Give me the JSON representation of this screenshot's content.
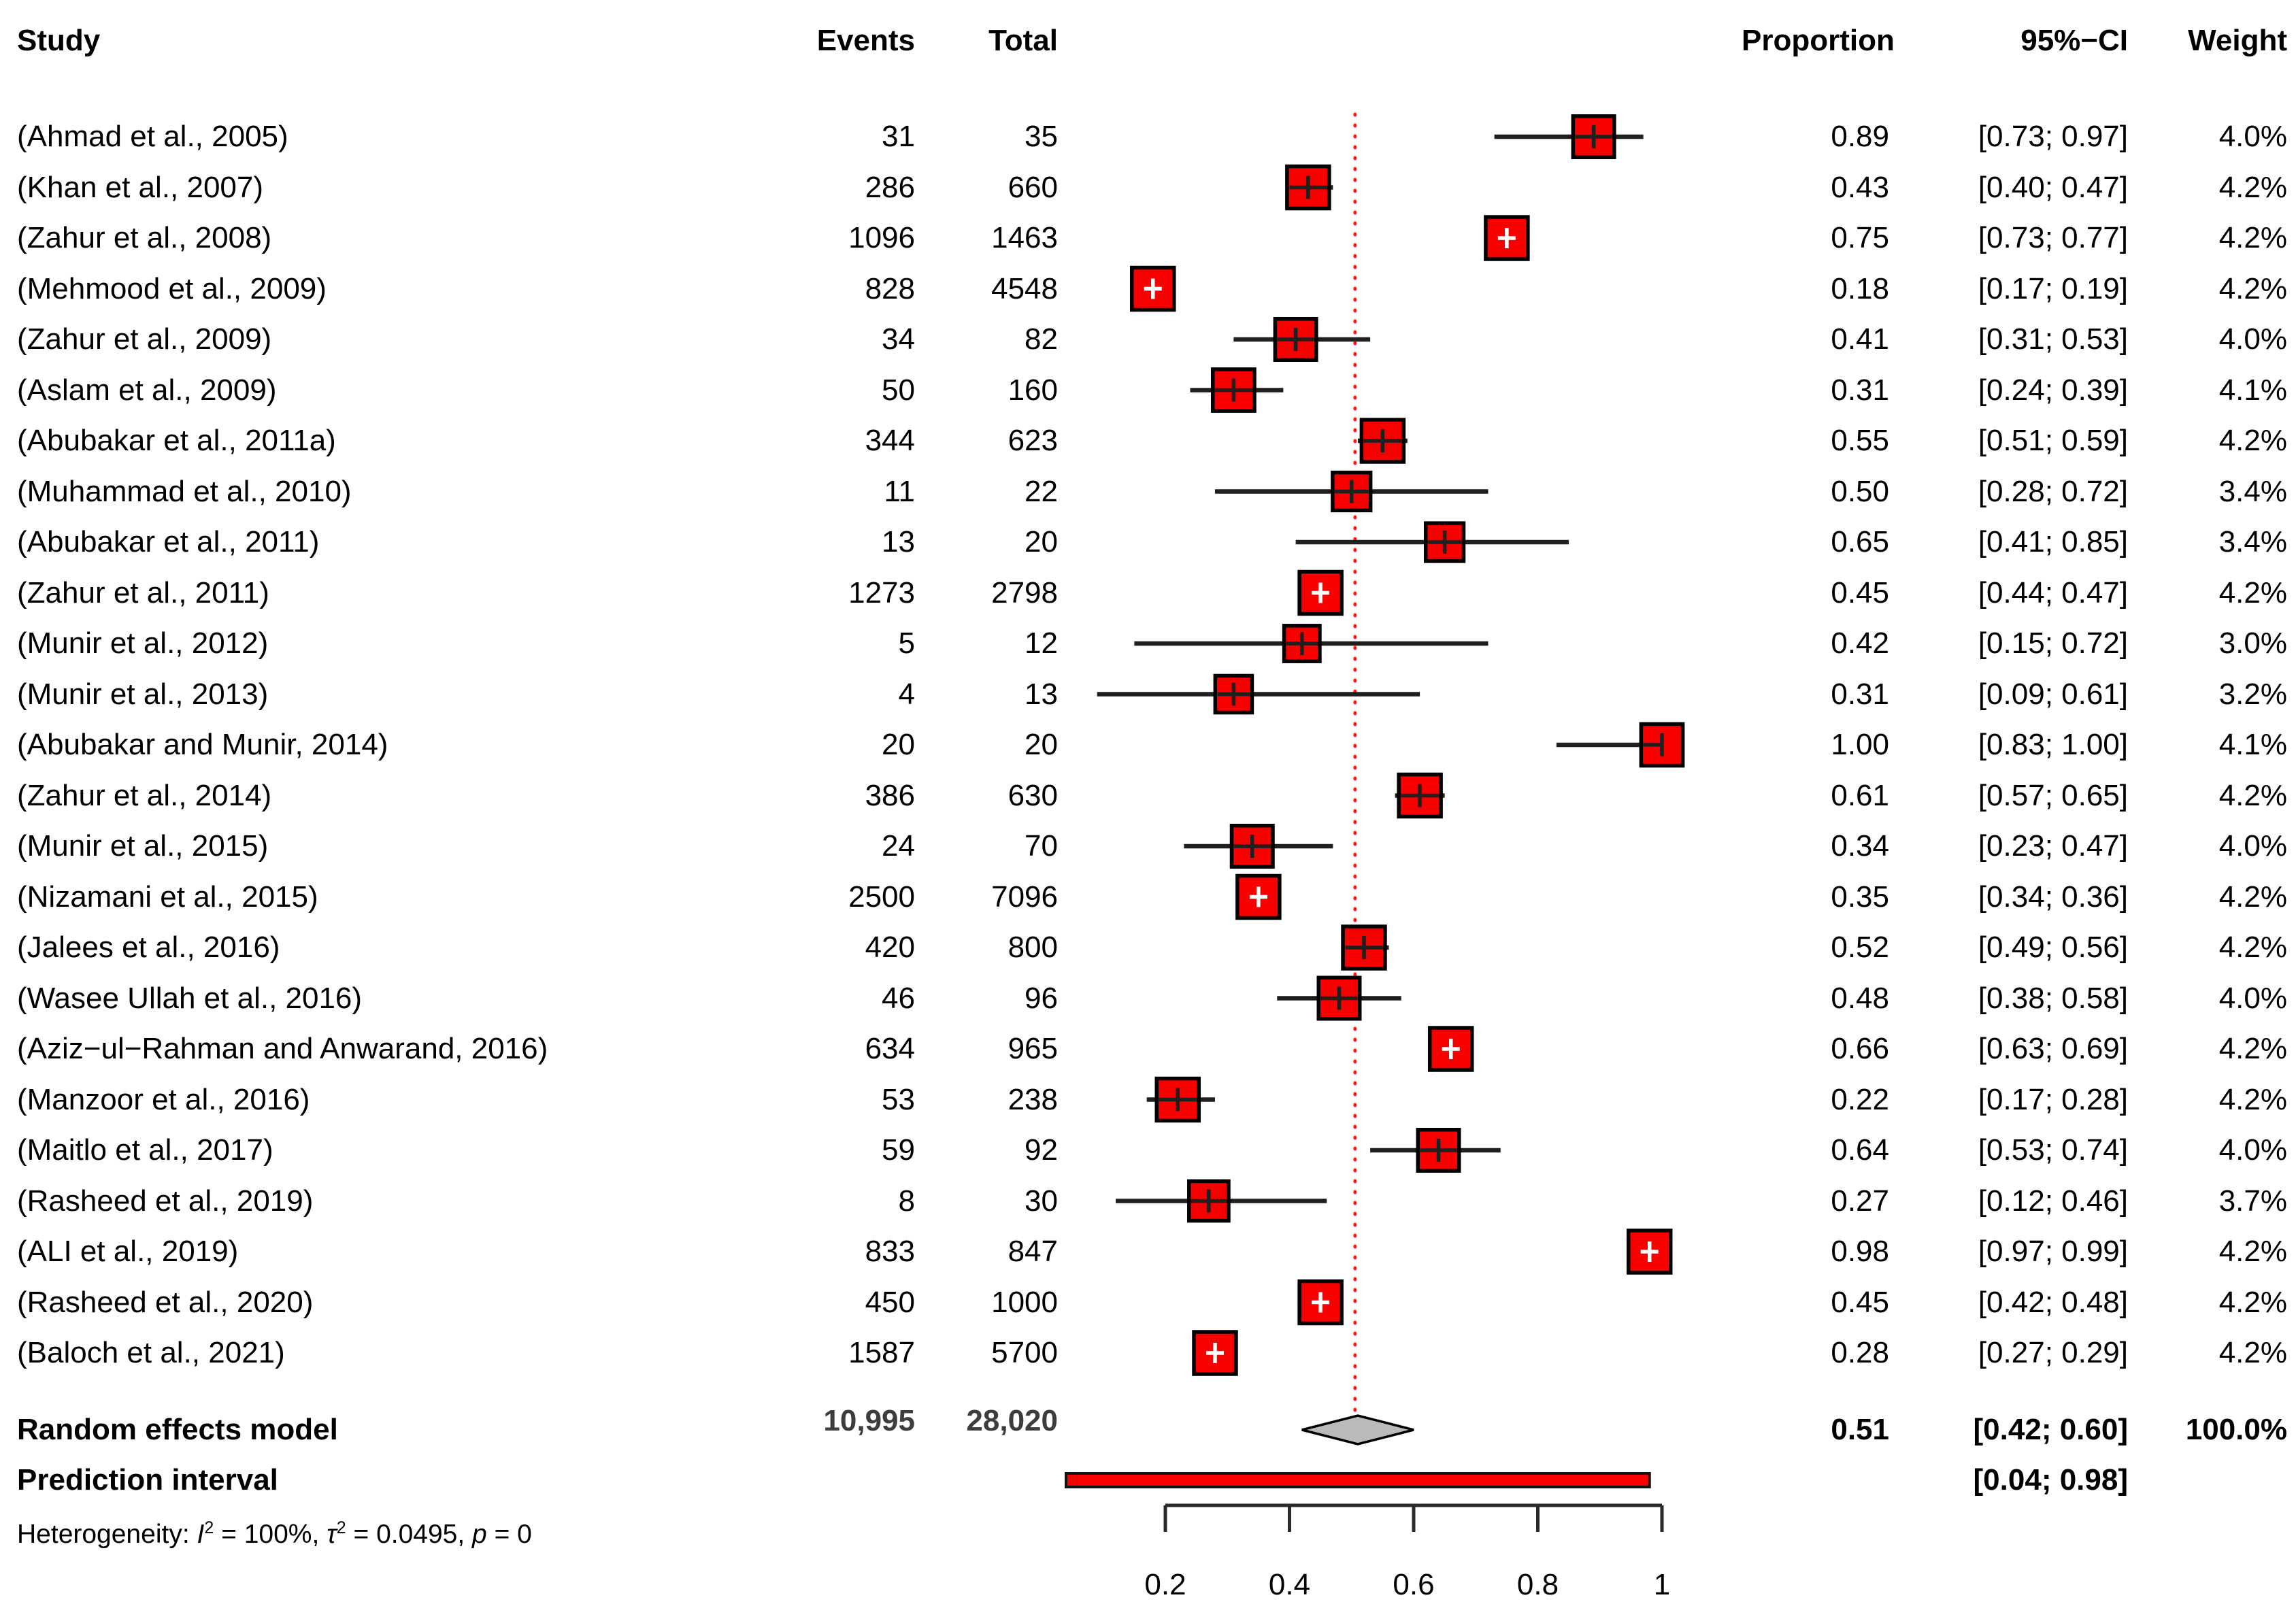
{
  "colors": {
    "square_fill": "#f80000",
    "square_border": "#000000",
    "ci_line": "#1f1f1f",
    "dotted_reference_line": "#ff2020",
    "diamond_fill": "#bababa",
    "diamond_border": "#000000",
    "prediction_bar_fill": "#fa0000",
    "prediction_bar_border": "#141414",
    "axis": "#2a2a2a",
    "totals_text": "#3d3d3d"
  },
  "chart_data": {
    "type": "forest",
    "title": "",
    "xlabel": "",
    "legend": "none",
    "grid": "off",
    "axis": {
      "xlim": [
        0,
        1
      ],
      "ticks": [
        0.2,
        0.4,
        0.6,
        0.8,
        1
      ],
      "tick_labels": [
        "0.2",
        "0.4",
        "0.6",
        "0.8",
        "1"
      ],
      "reference_line": 0.51
    },
    "columns": {
      "study": "Study",
      "events": "Events",
      "total": "Total",
      "proportion": "Proportion",
      "ci": "95%−CI",
      "weight": "Weight"
    },
    "studies": [
      {
        "label": "(Ahmad et al., 2005)",
        "events": "31",
        "total": "35",
        "est": 0.89,
        "lo": 0.73,
        "hi": 0.97,
        "proportion": "0.89",
        "ci": "[0.73; 0.97]",
        "weight": "4.0%",
        "weight_value": 4.0
      },
      {
        "label": "(Khan et al., 2007)",
        "events": "286",
        "total": "660",
        "est": 0.43,
        "lo": 0.4,
        "hi": 0.47,
        "proportion": "0.43",
        "ci": "[0.40; 0.47]",
        "weight": "4.2%",
        "weight_value": 4.2
      },
      {
        "label": "(Zahur et al., 2008)",
        "events": "1096",
        "total": "1463",
        "est": 0.75,
        "lo": 0.73,
        "hi": 0.77,
        "proportion": "0.75",
        "ci": "[0.73; 0.77]",
        "weight": "4.2%",
        "weight_value": 4.2
      },
      {
        "label": "(Mehmood et al., 2009)",
        "events": "828",
        "total": "4548",
        "est": 0.18,
        "lo": 0.17,
        "hi": 0.19,
        "proportion": "0.18",
        "ci": "[0.17; 0.19]",
        "weight": "4.2%",
        "weight_value": 4.2
      },
      {
        "label": "(Zahur et al., 2009)",
        "events": "34",
        "total": "82",
        "est": 0.41,
        "lo": 0.31,
        "hi": 0.53,
        "proportion": "0.41",
        "ci": "[0.31; 0.53]",
        "weight": "4.0%",
        "weight_value": 4.0
      },
      {
        "label": "(Aslam et al., 2009)",
        "events": "50",
        "total": "160",
        "est": 0.31,
        "lo": 0.24,
        "hi": 0.39,
        "proportion": "0.31",
        "ci": "[0.24; 0.39]",
        "weight": "4.1%",
        "weight_value": 4.1
      },
      {
        "label": "(Abubakar et al., 2011a)",
        "events": "344",
        "total": "623",
        "est": 0.55,
        "lo": 0.51,
        "hi": 0.59,
        "proportion": "0.55",
        "ci": "[0.51; 0.59]",
        "weight": "4.2%",
        "weight_value": 4.2
      },
      {
        "label": "(Muhammad et al., 2010)",
        "events": "11",
        "total": "22",
        "est": 0.5,
        "lo": 0.28,
        "hi": 0.72,
        "proportion": "0.50",
        "ci": "[0.28; 0.72]",
        "weight": "3.4%",
        "weight_value": 3.4
      },
      {
        "label": "(Abubakar et al., 2011)",
        "events": "13",
        "total": "20",
        "est": 0.65,
        "lo": 0.41,
        "hi": 0.85,
        "proportion": "0.65",
        "ci": "[0.41; 0.85]",
        "weight": "3.4%",
        "weight_value": 3.4
      },
      {
        "label": "(Zahur et al., 2011)",
        "events": "1273",
        "total": "2798",
        "est": 0.45,
        "lo": 0.44,
        "hi": 0.47,
        "proportion": "0.45",
        "ci": "[0.44; 0.47]",
        "weight": "4.2%",
        "weight_value": 4.2
      },
      {
        "label": "(Munir et al., 2012)",
        "events": "5",
        "total": "12",
        "est": 0.42,
        "lo": 0.15,
        "hi": 0.72,
        "proportion": "0.42",
        "ci": "[0.15; 0.72]",
        "weight": "3.0%",
        "weight_value": 3.0
      },
      {
        "label": "(Munir et al., 2013)",
        "events": "4",
        "total": "13",
        "est": 0.31,
        "lo": 0.09,
        "hi": 0.61,
        "proportion": "0.31",
        "ci": "[0.09; 0.61]",
        "weight": "3.2%",
        "weight_value": 3.2
      },
      {
        "label": "(Abubakar and Munir, 2014)",
        "events": "20",
        "total": "20",
        "est": 1.0,
        "lo": 0.83,
        "hi": 1.0,
        "proportion": "1.00",
        "ci": "[0.83; 1.00]",
        "weight": "4.1%",
        "weight_value": 4.1
      },
      {
        "label": "(Zahur et al., 2014)",
        "events": "386",
        "total": "630",
        "est": 0.61,
        "lo": 0.57,
        "hi": 0.65,
        "proportion": "0.61",
        "ci": "[0.57; 0.65]",
        "weight": "4.2%",
        "weight_value": 4.2
      },
      {
        "label": "(Munir et al., 2015)",
        "events": "24",
        "total": "70",
        "est": 0.34,
        "lo": 0.23,
        "hi": 0.47,
        "proportion": "0.34",
        "ci": "[0.23; 0.47]",
        "weight": "4.0%",
        "weight_value": 4.0
      },
      {
        "label": "(Nizamani et al., 2015)",
        "events": "2500",
        "total": "7096",
        "est": 0.35,
        "lo": 0.34,
        "hi": 0.36,
        "proportion": "0.35",
        "ci": "[0.34; 0.36]",
        "weight": "4.2%",
        "weight_value": 4.2
      },
      {
        "label": "(Jalees et al., 2016)",
        "events": "420",
        "total": "800",
        "est": 0.52,
        "lo": 0.49,
        "hi": 0.56,
        "proportion": "0.52",
        "ci": "[0.49; 0.56]",
        "weight": "4.2%",
        "weight_value": 4.2
      },
      {
        "label": "(Wasee Ullah et al., 2016)",
        "events": "46",
        "total": "96",
        "est": 0.48,
        "lo": 0.38,
        "hi": 0.58,
        "proportion": "0.48",
        "ci": "[0.38; 0.58]",
        "weight": "4.0%",
        "weight_value": 4.0
      },
      {
        "label": "(Aziz−ul−Rahman and Anwarand, 2016)",
        "events": "634",
        "total": "965",
        "est": 0.66,
        "lo": 0.63,
        "hi": 0.69,
        "proportion": "0.66",
        "ci": "[0.63; 0.69]",
        "weight": "4.2%",
        "weight_value": 4.2
      },
      {
        "label": "(Manzoor et al., 2016)",
        "events": "53",
        "total": "238",
        "est": 0.22,
        "lo": 0.17,
        "hi": 0.28,
        "proportion": "0.22",
        "ci": "[0.17; 0.28]",
        "weight": "4.2%",
        "weight_value": 4.2
      },
      {
        "label": "(Maitlo et al., 2017)",
        "events": "59",
        "total": "92",
        "est": 0.64,
        "lo": 0.53,
        "hi": 0.74,
        "proportion": "0.64",
        "ci": "[0.53; 0.74]",
        "weight": "4.0%",
        "weight_value": 4.0
      },
      {
        "label": "(Rasheed et al., 2019)",
        "events": "8",
        "total": "30",
        "est": 0.27,
        "lo": 0.12,
        "hi": 0.46,
        "proportion": "0.27",
        "ci": "[0.12; 0.46]",
        "weight": "3.7%",
        "weight_value": 3.7
      },
      {
        "label": "(ALI et al., 2019)",
        "events": "833",
        "total": "847",
        "est": 0.98,
        "lo": 0.97,
        "hi": 0.99,
        "proportion": "0.98",
        "ci": "[0.97; 0.99]",
        "weight": "4.2%",
        "weight_value": 4.2
      },
      {
        "label": "(Rasheed et al., 2020)",
        "events": "450",
        "total": "1000",
        "est": 0.45,
        "lo": 0.42,
        "hi": 0.48,
        "proportion": "0.45",
        "ci": "[0.42; 0.48]",
        "weight": "4.2%",
        "weight_value": 4.2
      },
      {
        "label": "(Baloch et al., 2021)",
        "events": "1587",
        "total": "5700",
        "est": 0.28,
        "lo": 0.27,
        "hi": 0.29,
        "proportion": "0.28",
        "ci": "[0.27; 0.29]",
        "weight": "4.2%",
        "weight_value": 4.2
      }
    ],
    "summary": {
      "label": "Random effects model",
      "events": "10,995",
      "total": "28,020",
      "est": 0.51,
      "lo": 0.42,
      "hi": 0.6,
      "proportion": "0.51",
      "ci": "[0.42; 0.60]",
      "weight": "100.0%"
    },
    "prediction_interval": {
      "label": "Prediction interval",
      "lo": 0.04,
      "hi": 0.98,
      "ci": "[0.04; 0.98]"
    },
    "heterogeneity_segments": [
      {
        "text": "Heterogeneity: "
      },
      {
        "text": "I",
        "italic": true
      },
      {
        "text": "2",
        "sup": true
      },
      {
        "text": " = 100%, "
      },
      {
        "text": "τ",
        "italic": true
      },
      {
        "text": "2",
        "sup": true
      },
      {
        "text": " = 0.0495, "
      },
      {
        "text": "p",
        "italic": true
      },
      {
        "text": " = 0"
      }
    ]
  }
}
